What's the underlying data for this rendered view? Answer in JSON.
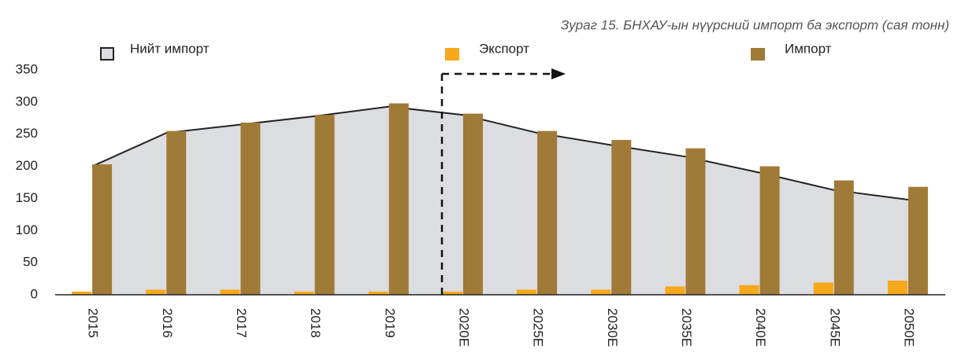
{
  "chart_data": {
    "type": "bar",
    "title": "Зураг 15. БНХАУ-ын нүүрсний импорт ба экспорт (сая тонн)",
    "categories": [
      "2015",
      "2016",
      "2017",
      "2018",
      "2019",
      "2020E",
      "2025E",
      "2030E",
      "2035E",
      "2040E",
      "2045E",
      "2050E"
    ],
    "series": [
      {
        "name": "Нийт импорт",
        "type": "area",
        "color": "#dcdde0",
        "values": [
          200,
          252,
          265,
          278,
          293,
          280,
          252,
          233,
          215,
          190,
          163,
          148
        ]
      },
      {
        "name": "Экспорт",
        "type": "bar",
        "color": "#f7a81b",
        "values": [
          5,
          8,
          8,
          5,
          5,
          5,
          8,
          8,
          13,
          15,
          19,
          22
        ]
      },
      {
        "name": "Импорт",
        "type": "bar",
        "color": "#a07a37",
        "values": [
          203,
          255,
          268,
          280,
          298,
          282,
          255,
          241,
          228,
          200,
          178,
          168
        ]
      }
    ],
    "ylim": [
      0,
      350
    ],
    "yticks": [
      0,
      50,
      100,
      150,
      200,
      250,
      300,
      350
    ],
    "grid": false
  }
}
